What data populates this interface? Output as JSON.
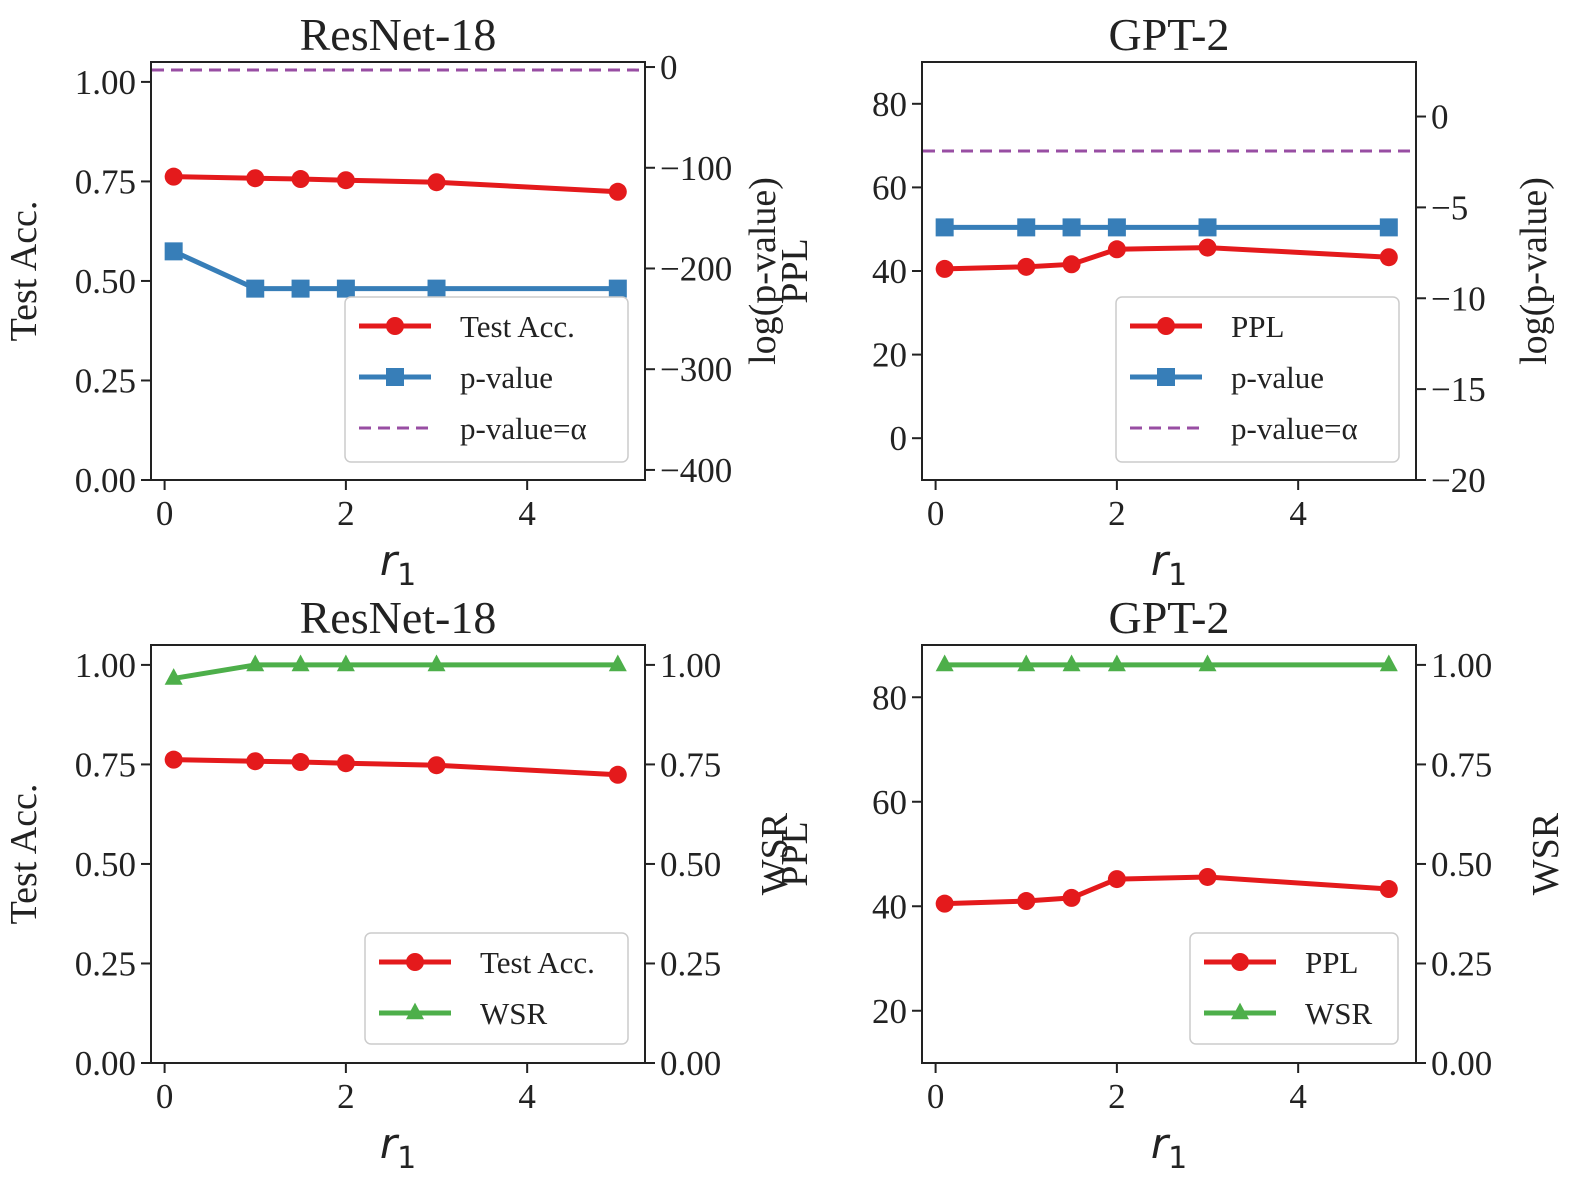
{
  "chart_data": [
    {
      "type": "line",
      "title": "ResNet-18",
      "xlabel": "r1",
      "ylabel": "Test Acc.",
      "y2label": "log(p-value)",
      "xlim": [
        -0.15,
        5.3
      ],
      "ylim": [
        0.0,
        1.05
      ],
      "y2lim": [
        -410,
        5
      ],
      "xticks": [
        0,
        2,
        4
      ],
      "yticks": [
        "0.00",
        "0.25",
        "0.50",
        "0.75",
        "1.00"
      ],
      "y2ticks": [
        "0",
        "−100",
        "−200",
        "−300",
        "−400"
      ],
      "x": [
        0.1,
        1,
        1.5,
        2,
        3,
        5
      ],
      "series": [
        {
          "name": "Test Acc.",
          "axis": "left",
          "color": "#e41a1c",
          "marker": "circle",
          "values": [
            0.762,
            0.758,
            0.756,
            0.753,
            0.748,
            0.724
          ]
        },
        {
          "name": "p-value",
          "axis": "right",
          "color": "#377eb8",
          "marker": "square",
          "values": [
            -183,
            -220,
            -220,
            -220,
            -220,
            -220
          ]
        },
        {
          "name": "p-value=α",
          "axis": "right",
          "color": "#984ea3",
          "style": "dashed",
          "hline": -3
        }
      ],
      "legend": "lower-right"
    },
    {
      "type": "line",
      "title": "GPT-2",
      "xlabel": "r1",
      "ylabel": "PPL",
      "y2label": "log(p-value)",
      "xlim": [
        -0.15,
        5.3
      ],
      "ylim": [
        -10,
        90
      ],
      "y2lim": [
        -20,
        3
      ],
      "xticks": [
        0,
        2,
        4
      ],
      "yticks": [
        "0",
        "20",
        "40",
        "60",
        "80"
      ],
      "y2ticks": [
        "0",
        "−5",
        "−10",
        "−15",
        "−20"
      ],
      "x": [
        0.1,
        1,
        1.5,
        2,
        3,
        5
      ],
      "series": [
        {
          "name": "PPL",
          "axis": "left",
          "color": "#e41a1c",
          "marker": "circle",
          "values": [
            40.5,
            41.0,
            41.6,
            45.2,
            45.6,
            43.3
          ]
        },
        {
          "name": "p-value",
          "axis": "right",
          "color": "#377eb8",
          "marker": "square",
          "values": [
            -6.1,
            -6.1,
            -6.1,
            -6.1,
            -6.1,
            -6.1
          ]
        },
        {
          "name": "p-value=α",
          "axis": "right",
          "color": "#984ea3",
          "style": "dashed",
          "hline": -1.9
        }
      ],
      "legend": "lower-right"
    },
    {
      "type": "line",
      "title": "ResNet-18",
      "xlabel": "r1",
      "ylabel": "Test Acc.",
      "y2label": "WSR",
      "xlim": [
        -0.15,
        5.3
      ],
      "ylim": [
        0.0,
        1.05
      ],
      "y2lim": [
        0.0,
        1.05
      ],
      "xticks": [
        0,
        2,
        4
      ],
      "yticks": [
        "0.00",
        "0.25",
        "0.50",
        "0.75",
        "1.00"
      ],
      "y2ticks": [
        "0.00",
        "0.25",
        "0.50",
        "0.75",
        "1.00"
      ],
      "x": [
        0.1,
        1,
        1.5,
        2,
        3,
        5
      ],
      "series": [
        {
          "name": "Test Acc.",
          "axis": "left",
          "color": "#e41a1c",
          "marker": "circle",
          "values": [
            0.762,
            0.758,
            0.756,
            0.753,
            0.748,
            0.724
          ]
        },
        {
          "name": "WSR",
          "axis": "right",
          "color": "#4daf4a",
          "marker": "triangle",
          "values": [
            0.966,
            1.0,
            1.0,
            1.0,
            1.0,
            1.0
          ]
        }
      ],
      "legend": "lower-right"
    },
    {
      "type": "line",
      "title": "GPT-2",
      "xlabel": "r1",
      "ylabel": "PPL",
      "y2label": "WSR",
      "xlim": [
        -0.15,
        5.3
      ],
      "ylim": [
        10,
        90
      ],
      "y2lim": [
        0.0,
        1.05
      ],
      "xticks": [
        0,
        2,
        4
      ],
      "yticks": [
        "20",
        "40",
        "60",
        "80"
      ],
      "y2ticks": [
        "0.00",
        "0.25",
        "0.50",
        "0.75",
        "1.00"
      ],
      "x": [
        0.1,
        1,
        1.5,
        2,
        3,
        5
      ],
      "series": [
        {
          "name": "PPL",
          "axis": "left",
          "color": "#e41a1c",
          "marker": "circle",
          "values": [
            40.5,
            41.0,
            41.6,
            45.2,
            45.6,
            43.3
          ]
        },
        {
          "name": "WSR",
          "axis": "right",
          "color": "#4daf4a",
          "marker": "triangle",
          "values": [
            1.0,
            1.0,
            1.0,
            1.0,
            1.0,
            1.0
          ]
        }
      ],
      "legend": "lower-right"
    }
  ]
}
